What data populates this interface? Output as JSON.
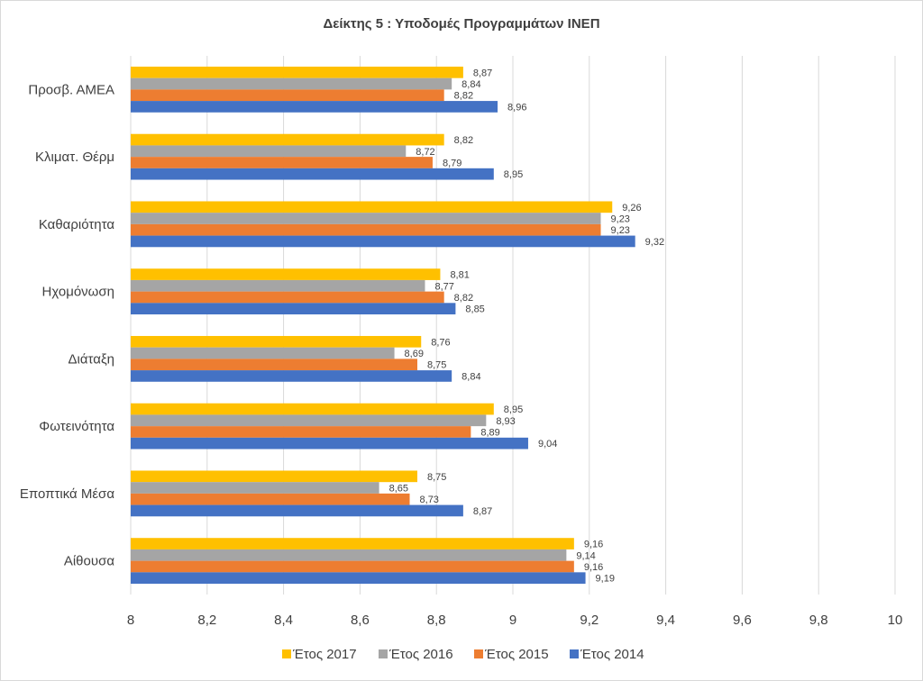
{
  "chart_data": {
    "type": "bar",
    "orientation": "horizontal",
    "title": "Δείκτης 5 : Υποδομές Προγραμμάτων ΙΝΕΠ",
    "xlabel": "",
    "ylabel": "",
    "xlim": [
      8,
      10
    ],
    "xticks": [
      "8",
      "8,2",
      "8,4",
      "8,6",
      "8,8",
      "9",
      "9,2",
      "9,4",
      "9,6",
      "9,8",
      "10"
    ],
    "xtick_values": [
      8,
      8.2,
      8.4,
      8.6,
      8.8,
      9,
      9.2,
      9.4,
      9.6,
      9.8,
      10
    ],
    "grid": "vertical",
    "legend_position": "bottom",
    "categories": [
      "Προσβ. ΑΜΕΑ",
      "Κλιματ. Θέρμ",
      "Καθαριότητα",
      "Ηχομόνωση",
      "Διάταξη",
      "Φωτεινότητα",
      "Εποπτικά Μέσα",
      "Αίθουσα"
    ],
    "series": [
      {
        "name": "Έτος 2017",
        "color": "#FFC000",
        "values": [
          8.87,
          8.82,
          9.26,
          8.81,
          8.76,
          8.95,
          8.75,
          9.16
        ],
        "labels": [
          "8,87",
          "8,82",
          "9,26",
          "8,81",
          "8,76",
          "8,95",
          "8,75",
          "9,16"
        ]
      },
      {
        "name": "Έτος 2016",
        "color": "#A5A5A5",
        "values": [
          8.84,
          8.72,
          9.23,
          8.77,
          8.69,
          8.93,
          8.65,
          9.14
        ],
        "labels": [
          "8,84",
          "8,72",
          "9,23",
          "8,77",
          "8,69",
          "8,93",
          "8,65",
          "9,14"
        ]
      },
      {
        "name": "Έτος 2015",
        "color": "#ED7D31",
        "values": [
          8.82,
          8.79,
          9.23,
          8.82,
          8.75,
          8.89,
          8.73,
          9.16
        ],
        "labels": [
          "8,82",
          "8,79",
          "9,23",
          "8,82",
          "8,75",
          "8,89",
          "8,73",
          "9,16"
        ]
      },
      {
        "name": "Έτος 2014",
        "color": "#4472C4",
        "values": [
          8.96,
          8.95,
          9.32,
          8.85,
          8.84,
          9.04,
          8.87,
          9.19
        ],
        "labels": [
          "8,96",
          "8,95",
          "9,32",
          "8,85",
          "8,84",
          "9,04",
          "8,87",
          "9,19"
        ]
      }
    ]
  }
}
